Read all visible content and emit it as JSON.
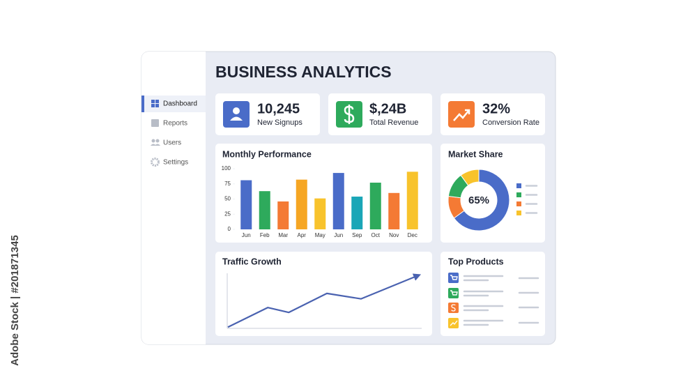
{
  "watermark": "Adobe Stock | #201871345",
  "header": {
    "title": "BUSINESS ANALYTICS"
  },
  "sidebar": {
    "items": [
      "Dashboard",
      "Reports",
      "Users",
      "Settings"
    ]
  },
  "kpis": [
    {
      "value": "10,245",
      "label": "New Signups"
    },
    {
      "value": "$,24B",
      "label": "Total Revenue"
    },
    {
      "value": "32%",
      "label": "Conversion Rate"
    }
  ],
  "chart_data": [
    {
      "type": "bar",
      "title": "Monthly Performance",
      "categories": [
        "Jun",
        "Feb",
        "Mar",
        "Apr",
        "May",
        "Jun",
        "Sep",
        "Oct",
        "Nov",
        "Dec"
      ],
      "values": [
        81,
        63,
        46,
        82,
        51,
        93,
        54,
        77,
        60,
        95
      ],
      "colors": [
        "#4a6cc8",
        "#2eaa5c",
        "#f47a34",
        "#f6a623",
        "#f8c32c",
        "#4a6cc8",
        "#1aa6b7",
        "#2eaa5c",
        "#f47a34",
        "#f8c32c"
      ],
      "ylim": [
        0,
        100
      ],
      "yticks": [
        0,
        25,
        50,
        75,
        100
      ]
    },
    {
      "type": "pie",
      "title": "Market Share",
      "values": [
        65,
        12,
        13,
        10
      ],
      "colors": [
        "#4a6cc8",
        "#f47a34",
        "#2eaa5c",
        "#f8c32c"
      ],
      "center_label": "65%",
      "donut": true
    },
    {
      "type": "line",
      "title": "Traffic Growth",
      "x": [
        0,
        21,
        32,
        52,
        70,
        100
      ],
      "values": [
        1,
        37,
        28,
        63,
        53,
        96
      ],
      "xlim": [
        0,
        100
      ],
      "ylim": [
        0,
        100
      ],
      "color": "#4a62b0"
    }
  ],
  "top_products": {
    "title": "Top Products"
  }
}
